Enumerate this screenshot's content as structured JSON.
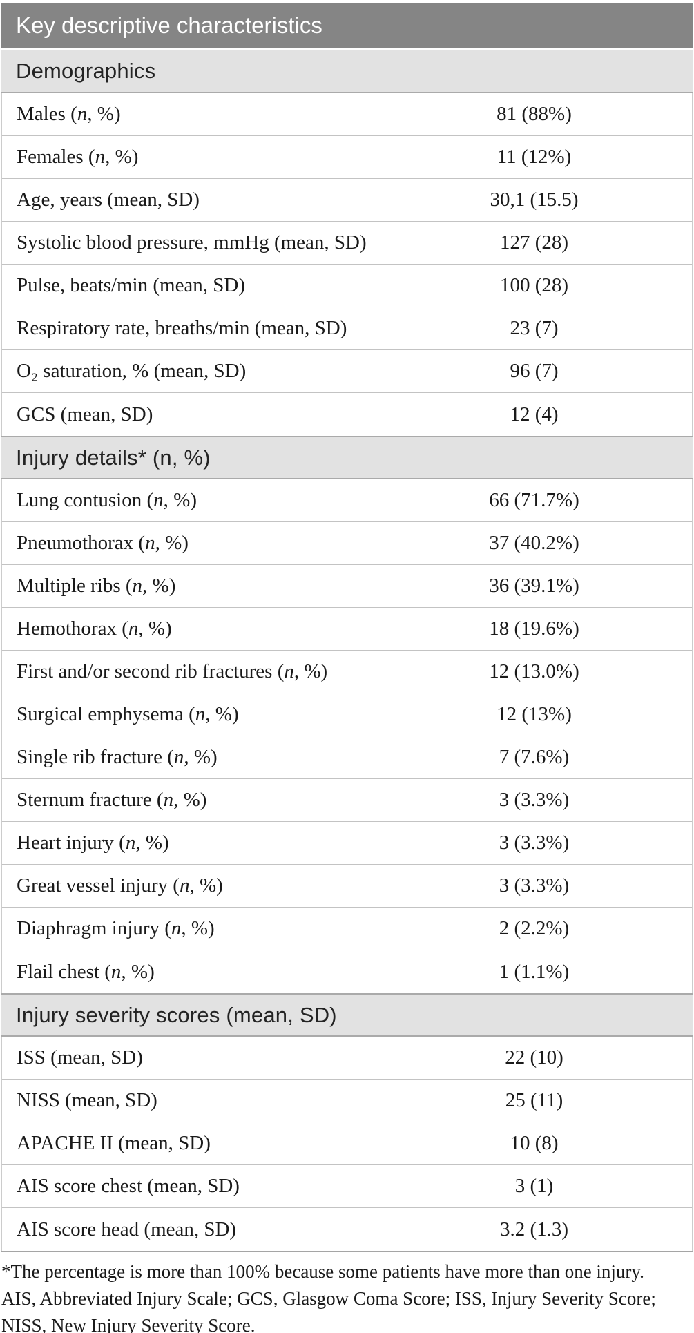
{
  "table": {
    "title": "Key descriptive characteristics",
    "sections": [
      {
        "header": "Demographics",
        "rows": [
          {
            "label": "Males (n, %)",
            "value": "81 (88%)"
          },
          {
            "label": "Females (n, %)",
            "value": "11 (12%)"
          },
          {
            "label": "Age, years (mean, SD)",
            "value": "30,1 (15.5)"
          },
          {
            "label": "Systolic blood pressure, mmHg (mean, SD)",
            "value": "127 (28)"
          },
          {
            "label": "Pulse, beats/min (mean, SD)",
            "value": "100 (28)"
          },
          {
            "label": "Respiratory rate, breaths/min (mean, SD)",
            "value": "23 (7)"
          },
          {
            "label": "O₂ saturation, % (mean, SD)",
            "value": "96 (7)"
          },
          {
            "label": "GCS (mean, SD)",
            "value": "12 (4)"
          }
        ]
      },
      {
        "header": "Injury details* (n, %)",
        "rows": [
          {
            "label": "Lung contusion (n, %)",
            "value": "66 (71.7%)"
          },
          {
            "label": "Pneumothorax (n, %)",
            "value": "37 (40.2%)"
          },
          {
            "label": "Multiple ribs (n, %)",
            "value": "36 (39.1%)"
          },
          {
            "label": "Hemothorax (n, %)",
            "value": "18 (19.6%)"
          },
          {
            "label": "First and/or second rib fractures (n, %)",
            "value": "12 (13.0%)"
          },
          {
            "label": "Surgical emphysema (n, %)",
            "value": "12 (13%)"
          },
          {
            "label": "Single rib fracture (n, %)",
            "value": "7 (7.6%)"
          },
          {
            "label": "Sternum fracture (n, %)",
            "value": "3 (3.3%)"
          },
          {
            "label": "Heart injury (n, %)",
            "value": "3 (3.3%)"
          },
          {
            "label": "Great vessel injury (n, %)",
            "value": "3 (3.3%)"
          },
          {
            "label": "Diaphragm injury (n, %)",
            "value": "2 (2.2%)"
          },
          {
            "label": "Flail chest (n, %)",
            "value": "1 (1.1%)"
          }
        ]
      },
      {
        "header": "Injury severity scores (mean, SD)",
        "rows": [
          {
            "label": "ISS (mean, SD)",
            "value": "22 (10)"
          },
          {
            "label": "NISS (mean, SD)",
            "value": "25 (11)"
          },
          {
            "label": "APACHE II (mean, SD)",
            "value": "10 (8)"
          },
          {
            "label": "AIS score chest (mean, SD)",
            "value": "3 (1)"
          },
          {
            "label": "AIS score head (mean, SD)",
            "value": "3.2 (1.3)"
          }
        ]
      }
    ],
    "footnotes": [
      "*The percentage is more than 100% because some patients have more than one injury.",
      "AIS, Abbreviated Injury Scale; GCS, Glasgow Coma Score; ISS, Injury Severity Score; NISS, New Injury Severity Score."
    ]
  },
  "colors": {
    "title_bar_bg": "#858585",
    "title_text": "#ffffff",
    "section_bar_bg": "#e2e2e2",
    "section_border": "#aaaaaa",
    "row_border": "#c3c3c3",
    "body_text": "#1a1a1a"
  }
}
